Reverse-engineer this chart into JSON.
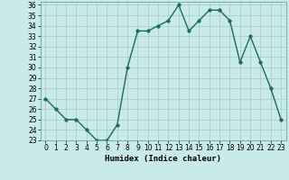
{
  "x": [
    0,
    1,
    2,
    3,
    4,
    5,
    6,
    7,
    8,
    9,
    10,
    11,
    12,
    13,
    14,
    15,
    16,
    17,
    18,
    19,
    20,
    21,
    22,
    23
  ],
  "y": [
    27,
    26,
    25,
    25,
    24,
    23,
    23,
    24.5,
    30,
    33.5,
    33.5,
    34,
    34.5,
    36,
    33.5,
    34.5,
    35.5,
    35.5,
    34.5,
    30.5,
    33,
    30.5,
    28,
    25
  ],
  "line_color": "#1a6b5a",
  "marker_color": "#1a6b5a",
  "bg_color": "#c8eaea",
  "grid_color": "#a8c8c8",
  "xlabel": "Humidex (Indice chaleur)",
  "xlim": [
    -0.5,
    23.5
  ],
  "ylim": [
    23,
    36.3
  ],
  "yticks": [
    23,
    24,
    25,
    26,
    27,
    28,
    29,
    30,
    31,
    32,
    33,
    34,
    35,
    36
  ],
  "xticks": [
    0,
    1,
    2,
    3,
    4,
    5,
    6,
    7,
    8,
    9,
    10,
    11,
    12,
    13,
    14,
    15,
    16,
    17,
    18,
    19,
    20,
    21,
    22,
    23
  ],
  "xlabel_fontsize": 6.5,
  "tick_fontsize": 5.5,
  "line_width": 1.0,
  "marker_size": 2.5
}
